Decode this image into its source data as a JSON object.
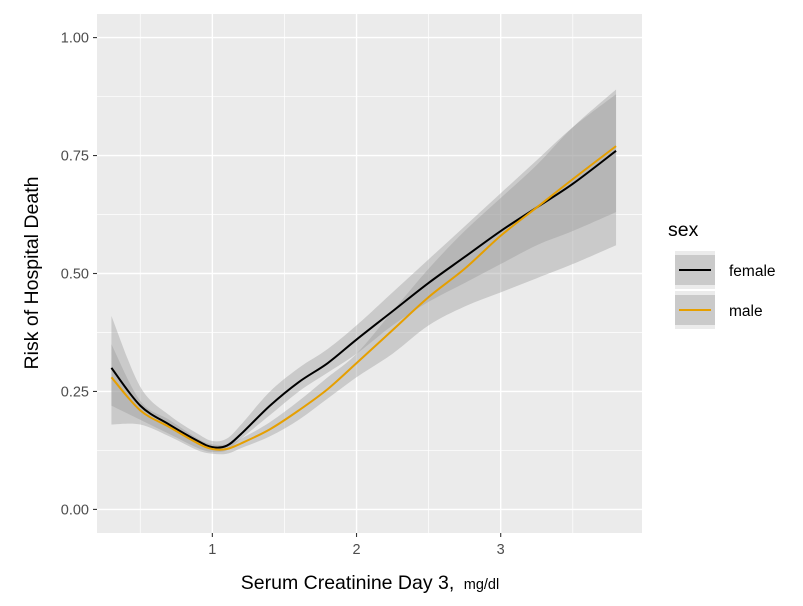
{
  "chart_data": {
    "type": "line",
    "title": "",
    "xlabel": "Serum Creatinine Day 3,",
    "xlabel_unit": "mg/dl",
    "ylabel": "Risk of Hospital Death",
    "xlim": [
      0.2,
      3.98
    ],
    "ylim": [
      -0.05,
      1.05
    ],
    "x_ticks": [
      1,
      2,
      3
    ],
    "x_tick_labels": [
      "1",
      "2",
      "3"
    ],
    "y_ticks": [
      0,
      0.25,
      0.5,
      0.75,
      1
    ],
    "y_tick_labels": [
      "0.00",
      "0.25",
      "0.50",
      "0.75",
      "1.00"
    ],
    "grid": true,
    "legend": {
      "title": "sex",
      "position": "right"
    },
    "series": [
      {
        "name": "female",
        "color": "#000000",
        "x": [
          0.3,
          0.5,
          0.7,
          0.9,
          1.0,
          1.1,
          1.2,
          1.4,
          1.6,
          1.8,
          2.0,
          2.25,
          2.5,
          2.75,
          3.0,
          3.25,
          3.5,
          3.8
        ],
        "y": [
          0.3,
          0.22,
          0.18,
          0.145,
          0.132,
          0.135,
          0.16,
          0.22,
          0.27,
          0.31,
          0.36,
          0.42,
          0.48,
          0.535,
          0.59,
          0.64,
          0.69,
          0.76
        ],
        "lower": [
          0.22,
          0.19,
          0.16,
          0.13,
          0.122,
          0.125,
          0.15,
          0.2,
          0.25,
          0.29,
          0.33,
          0.39,
          0.44,
          0.48,
          0.52,
          0.56,
          0.59,
          0.63
        ],
        "upper": [
          0.41,
          0.26,
          0.2,
          0.16,
          0.145,
          0.15,
          0.18,
          0.25,
          0.3,
          0.34,
          0.39,
          0.46,
          0.53,
          0.6,
          0.67,
          0.74,
          0.81,
          0.88
        ]
      },
      {
        "name": "male",
        "color": "#E69F00",
        "x": [
          0.3,
          0.5,
          0.7,
          0.9,
          1.0,
          1.1,
          1.2,
          1.4,
          1.6,
          1.8,
          2.0,
          2.25,
          2.5,
          2.75,
          3.0,
          3.25,
          3.5,
          3.8
        ],
        "y": [
          0.28,
          0.21,
          0.175,
          0.14,
          0.128,
          0.128,
          0.14,
          0.17,
          0.21,
          0.255,
          0.31,
          0.38,
          0.45,
          0.51,
          0.58,
          0.64,
          0.7,
          0.77
        ],
        "lower": [
          0.18,
          0.18,
          0.155,
          0.125,
          0.118,
          0.118,
          0.13,
          0.155,
          0.19,
          0.235,
          0.28,
          0.33,
          0.39,
          0.43,
          0.46,
          0.49,
          0.52,
          0.56
        ],
        "upper": [
          0.35,
          0.23,
          0.19,
          0.15,
          0.138,
          0.138,
          0.15,
          0.185,
          0.23,
          0.28,
          0.33,
          0.42,
          0.51,
          0.59,
          0.66,
          0.73,
          0.81,
          0.89
        ]
      }
    ]
  }
}
